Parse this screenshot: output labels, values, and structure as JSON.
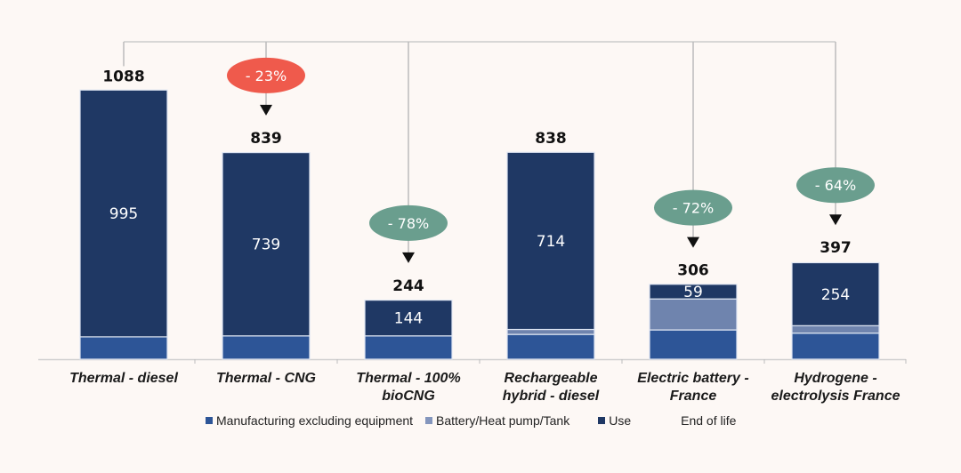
{
  "chart_data": {
    "type": "bar",
    "stacked": true,
    "title": "",
    "xlabel": "",
    "ylabel": "",
    "ylim": [
      0,
      1100
    ],
    "grid": false,
    "legend_position": "bottom",
    "categories": [
      [
        "Thermal - diesel"
      ],
      [
        "Thermal - CNG"
      ],
      [
        "Thermal - 100%",
        "bioCNG"
      ],
      [
        "Rechargeable",
        "hybrid - diesel"
      ],
      [
        "Electric battery -",
        "France"
      ],
      [
        "Hydrogene -",
        "electrolysis France"
      ]
    ],
    "totals": [
      1088,
      839,
      244,
      838,
      306,
      397
    ],
    "series": [
      {
        "name": "Manufacturing excluding equipment",
        "color": "#2d5597",
        "values": [
          90,
          94,
          94,
          100,
          118,
          105
        ]
      },
      {
        "name": "Battery/Heat pump/Tank",
        "color": "#6f84ae",
        "values": [
          0,
          0,
          0,
          20,
          125,
          30
        ]
      },
      {
        "name": "Use",
        "color": "#1f3864",
        "values": [
          995,
          739,
          144,
          714,
          59,
          254
        ],
        "labels": [
          "995",
          "739",
          "144",
          "714",
          "59",
          "254"
        ]
      },
      {
        "name": "End of life",
        "color": "#fdf8f5",
        "values": [
          3,
          6,
          6,
          4,
          4,
          8
        ]
      }
    ],
    "annotations": [
      {
        "target": 1,
        "text": "- 23%",
        "color": "#ef5a4c"
      },
      {
        "target": 2,
        "text": "- 78%",
        "color": "#6a9e8e"
      },
      {
        "target": 4,
        "text": "- 72%",
        "color": "#6a9e8e"
      },
      {
        "target": 5,
        "text": "- 64%",
        "color": "#6a9e8e"
      }
    ],
    "reference": 0
  },
  "legend": [
    {
      "label": "Manufacturing excluding equipment",
      "color": "#2d5597"
    },
    {
      "label": "Battery/Heat pump/Tank",
      "color": "#8496bd"
    },
    {
      "label": "Use",
      "color": "#1f3864"
    },
    {
      "label": "End of life",
      "color": "#fdf8f5"
    }
  ]
}
